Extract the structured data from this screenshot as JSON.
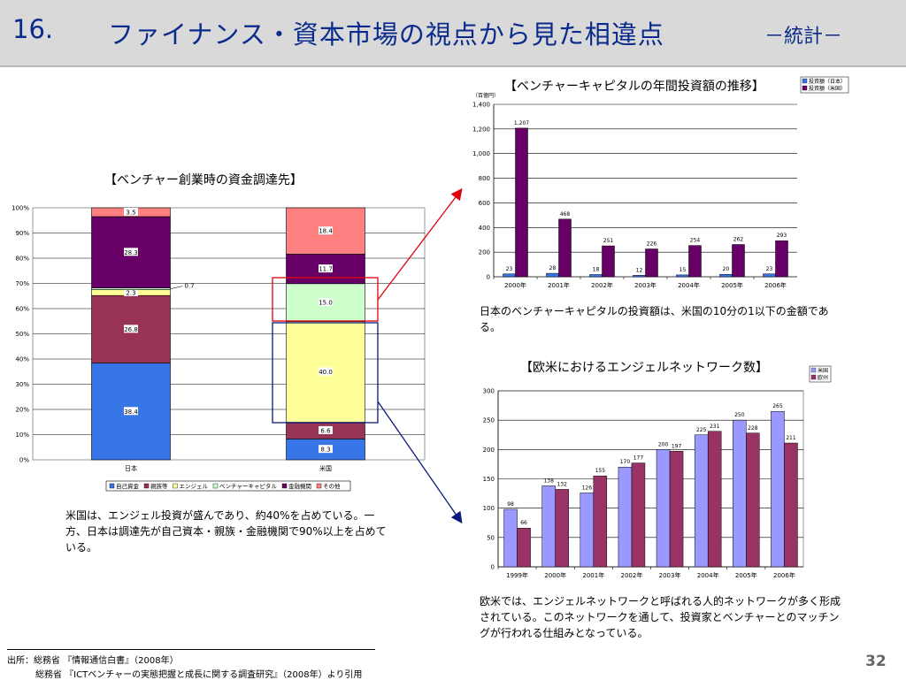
{
  "header": {
    "number": "16.",
    "title": "ファイナンス・資本市場の視点から見た相違点",
    "subtitle": "－統計－"
  },
  "chart_data": [
    {
      "type": "bar",
      "stacked": true,
      "title": "【ベンチャー創業時の資金調達先】",
      "categories": [
        "日本",
        "米国"
      ],
      "ylim": [
        0,
        100
      ],
      "yticks": [
        "0%",
        "10%",
        "20%",
        "30%",
        "40%",
        "50%",
        "60%",
        "70%",
        "80%",
        "90%",
        "100%"
      ],
      "legend_position": "bottom",
      "series": [
        {
          "name": "自己資金",
          "color": "#3875e6",
          "values": [
            38.4,
            8.3
          ],
          "labels": [
            "38.4",
            "8.3"
          ]
        },
        {
          "name": "親族等",
          "color": "#993355",
          "values": [
            26.8,
            6.6
          ],
          "labels": [
            "26.8",
            "6.6"
          ]
        },
        {
          "name": "エンジェル",
          "color": "#ffff99",
          "values": [
            2.3,
            40.0
          ],
          "labels": [
            "2.3",
            "40.0"
          ]
        },
        {
          "name": "ベンチャーキャピタル",
          "color": "#ccffcc",
          "values": [
            0.7,
            15.0
          ],
          "labels": [
            "0.7",
            "15.0"
          ]
        },
        {
          "name": "金融機関",
          "color": "#660066",
          "values": [
            28.3,
            11.7
          ],
          "labels": [
            "28.3",
            "11.7"
          ]
        },
        {
          "name": "その他",
          "color": "#ff8080",
          "values": [
            3.5,
            18.4
          ],
          "labels": [
            "3.5",
            "18.4"
          ]
        }
      ],
      "note": "米国は、エンジェル投資が盛んであり、約40%を占めている。一方、日本は調達先が自己資本・親族・金融機関で90%以上を占めている。"
    },
    {
      "type": "bar",
      "title": "【ベンチャーキャピタルの年間投資額の推移】",
      "unit_label": "（百億円）",
      "categories": [
        "2000年",
        "2001年",
        "2002年",
        "2003年",
        "2004年",
        "2005年",
        "2006年"
      ],
      "ylim": [
        0,
        1400
      ],
      "yticks": [
        "0",
        "200",
        "400",
        "600",
        "800",
        "1,000",
        "1,200",
        "1,400"
      ],
      "legend_position": "top-right",
      "series": [
        {
          "name": "投資額（日本）",
          "color": "#3875e6",
          "values": [
            23,
            28,
            18,
            12,
            15,
            20,
            23
          ],
          "labels": [
            "23",
            "28",
            "18",
            "12",
            "15",
            "20",
            "23"
          ]
        },
        {
          "name": "投資額（米国）",
          "color": "#660066",
          "values": [
            1207,
            468,
            251,
            226,
            254,
            262,
            293
          ],
          "labels": [
            "1,207",
            "468",
            "251",
            "226",
            "254",
            "262",
            "293"
          ]
        }
      ],
      "note": "日本のベンチャーキャピタルの投資額は、米国の10分の1以下の金額である。"
    },
    {
      "type": "bar",
      "title": "【欧米におけるエンジェルネットワーク数】",
      "categories": [
        "1999年",
        "2000年",
        "2001年",
        "2002年",
        "2003年",
        "2004年",
        "2005年",
        "2006年"
      ],
      "ylim": [
        0,
        300
      ],
      "yticks": [
        "0",
        "50",
        "100",
        "150",
        "200",
        "250",
        "300"
      ],
      "legend_position": "top-right",
      "series": [
        {
          "name": "米国",
          "color": "#9999ff",
          "values": [
            98,
            138,
            126,
            170,
            200,
            225,
            250,
            265
          ],
          "labels": [
            "98",
            "138",
            "126",
            "170",
            "200",
            "225",
            "250",
            "265"
          ]
        },
        {
          "name": "欧州",
          "color": "#993366",
          "values": [
            66,
            132,
            155,
            177,
            197,
            231,
            228,
            211
          ],
          "labels": [
            "66",
            "132",
            "155",
            "177",
            "197",
            "231",
            "228",
            "211"
          ]
        }
      ],
      "note": "欧米では、エンジェルネットワークと呼ばれる人的ネットワークが多く形成されている。このネットワークを通して、投資家とベンチャーとのマッチングが行われる仕組みとなっている。"
    }
  ],
  "footer": {
    "source_1": "出所：総務省 『情報通信白書』（2008年）",
    "source_2": "総務省 『ICTベンチャーの実態把握と成長に関する調査研究』（2008年）より引用",
    "page": "32"
  }
}
